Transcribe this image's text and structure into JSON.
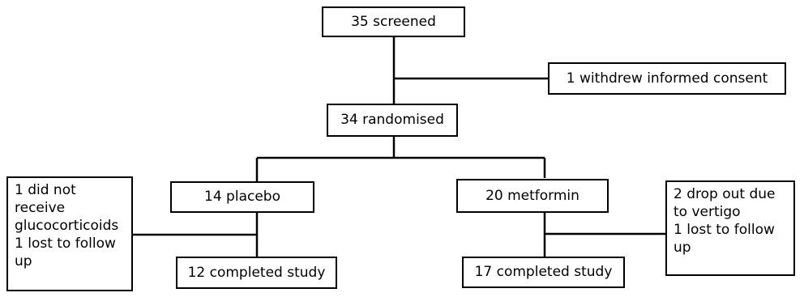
{
  "flowchart": {
    "screened": "35 screened",
    "withdrew": "1 withdrew informed consent",
    "randomised": "34 randomised",
    "placebo": "14 placebo",
    "metformin": "20 metformin",
    "placebo_exclusions": [
      "1 did not",
      "receive",
      "glucocorticoids",
      "1 lost to follow",
      "up"
    ],
    "metformin_exclusions": [
      "2 drop out due",
      "to vertigo",
      "1 lost to follow",
      "up"
    ],
    "placebo_completed": "12 completed study",
    "metformin_completed": "17 completed study"
  }
}
